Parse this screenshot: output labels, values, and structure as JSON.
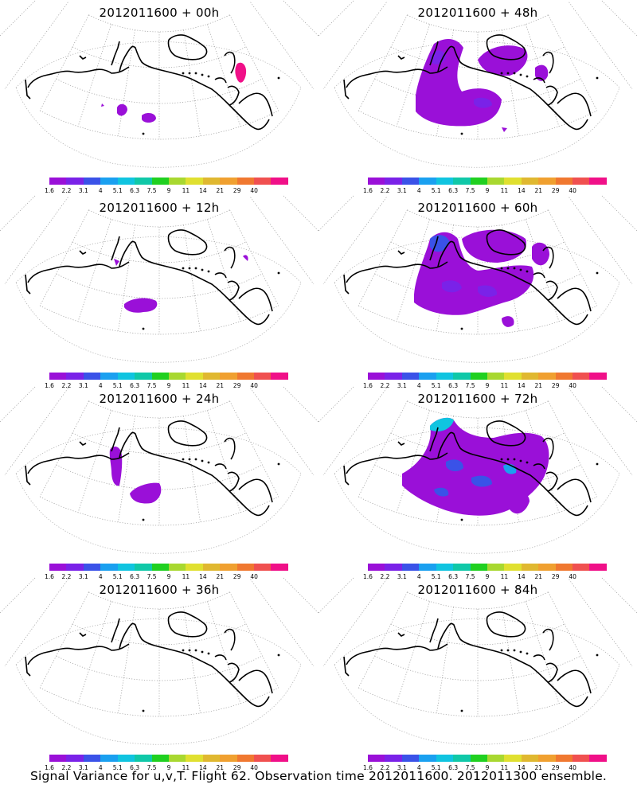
{
  "panels": [
    {
      "title": "2012011600 + 00h"
    },
    {
      "title": "2012011600 + 48h"
    },
    {
      "title": "2012011600 + 12h"
    },
    {
      "title": "2012011600 + 60h"
    },
    {
      "title": "2012011600 + 24h"
    },
    {
      "title": "2012011600 + 72h"
    },
    {
      "title": "2012011600 + 36h"
    },
    {
      "title": "2012011600 + 84h"
    }
  ],
  "colorbar": {
    "colors": [
      "#9a10d8",
      "#7a22e8",
      "#3a52e8",
      "#1aa0f0",
      "#10c4e0",
      "#10c8a8",
      "#20d020",
      "#a8d830",
      "#e0e030",
      "#e0b830",
      "#f0a030",
      "#f07830",
      "#f05050",
      "#f01088"
    ],
    "labels": [
      "1.6",
      "2.2",
      "3.1",
      "4",
      "5.1",
      "6.3",
      "7.5",
      "9",
      "11",
      "14",
      "21",
      "29",
      "40"
    ]
  },
  "footer": "Signal Variance for u,v,T. Flight 62. Observation time 2012011600. 2012011300 ensemble."
}
